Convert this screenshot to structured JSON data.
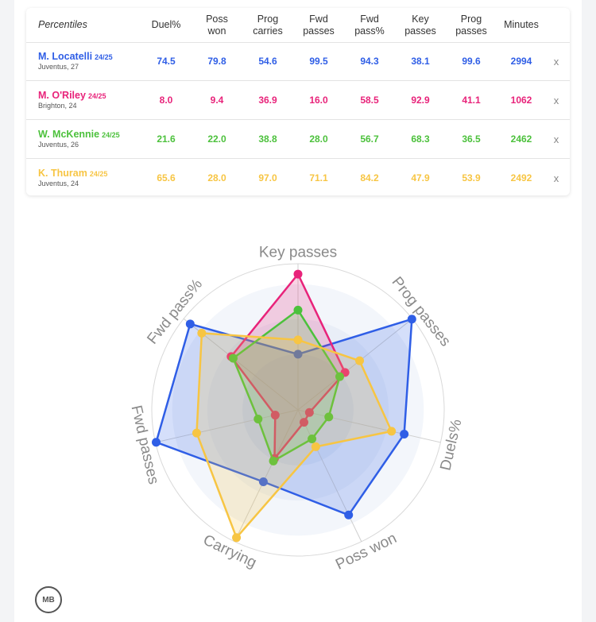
{
  "table": {
    "header_first": "Percentiles",
    "columns": [
      {
        "line1": "Duel%",
        "line2": ""
      },
      {
        "line1": "Poss",
        "line2": "won"
      },
      {
        "line1": "Prog",
        "line2": "carries"
      },
      {
        "line1": "Fwd",
        "line2": "passes"
      },
      {
        "line1": "Fwd",
        "line2": "pass%"
      },
      {
        "line1": "Key",
        "line2": "passes"
      },
      {
        "line1": "Prog",
        "line2": "passes"
      },
      {
        "line1": "Minutes",
        "line2": ""
      }
    ],
    "remove_label": "x",
    "rows": [
      {
        "name": "M. Locatelli",
        "season": "24/25",
        "sub": "Juventus, 27",
        "color": "#2f5ee6",
        "values": [
          "74.5",
          "79.8",
          "54.6",
          "99.5",
          "94.3",
          "38.1",
          "99.6",
          "2994"
        ]
      },
      {
        "name": "M. O'Riley",
        "season": "24/25",
        "sub": "Brighton, 24",
        "color": "#e8237a",
        "values": [
          "8.0",
          "9.4",
          "36.9",
          "16.0",
          "58.5",
          "92.9",
          "41.1",
          "1062"
        ]
      },
      {
        "name": "W. McKennie",
        "season": "24/25",
        "sub": "Juventus, 26",
        "color": "#4cc13c",
        "values": [
          "21.6",
          "22.0",
          "38.8",
          "28.0",
          "56.7",
          "68.3",
          "36.5",
          "2462"
        ]
      },
      {
        "name": "K. Thuram",
        "season": "24/25",
        "sub": "Juventus, 24",
        "color": "#f7c543",
        "values": [
          "65.6",
          "28.0",
          "97.0",
          "71.1",
          "84.2",
          "47.9",
          "53.9",
          "2492"
        ]
      }
    ]
  },
  "chart_data": {
    "type": "radar",
    "axes": [
      "Key passes",
      "Prog passes",
      "Duels%",
      "Poss won",
      "Carrying",
      "Fwd passes",
      "Fwd pass%"
    ],
    "range": [
      0,
      100
    ],
    "series": [
      {
        "name": "M. Locatelli",
        "color": "#2f5ee6",
        "values": [
          38.1,
          99.6,
          74.5,
          79.8,
          54.6,
          99.5,
          94.3
        ]
      },
      {
        "name": "M. O'Riley",
        "color": "#e8237a",
        "values": [
          92.9,
          41.1,
          8.0,
          9.4,
          36.9,
          16.0,
          58.5
        ]
      },
      {
        "name": "W. McKennie",
        "color": "#4cc13c",
        "values": [
          68.3,
          36.5,
          21.6,
          22.0,
          38.8,
          28.0,
          56.7
        ]
      },
      {
        "name": "K. Thuram",
        "color": "#f7c543",
        "values": [
          47.9,
          53.9,
          65.6,
          28.0,
          97.0,
          71.1,
          84.2
        ]
      }
    ]
  },
  "logo": {
    "text": "MB"
  }
}
